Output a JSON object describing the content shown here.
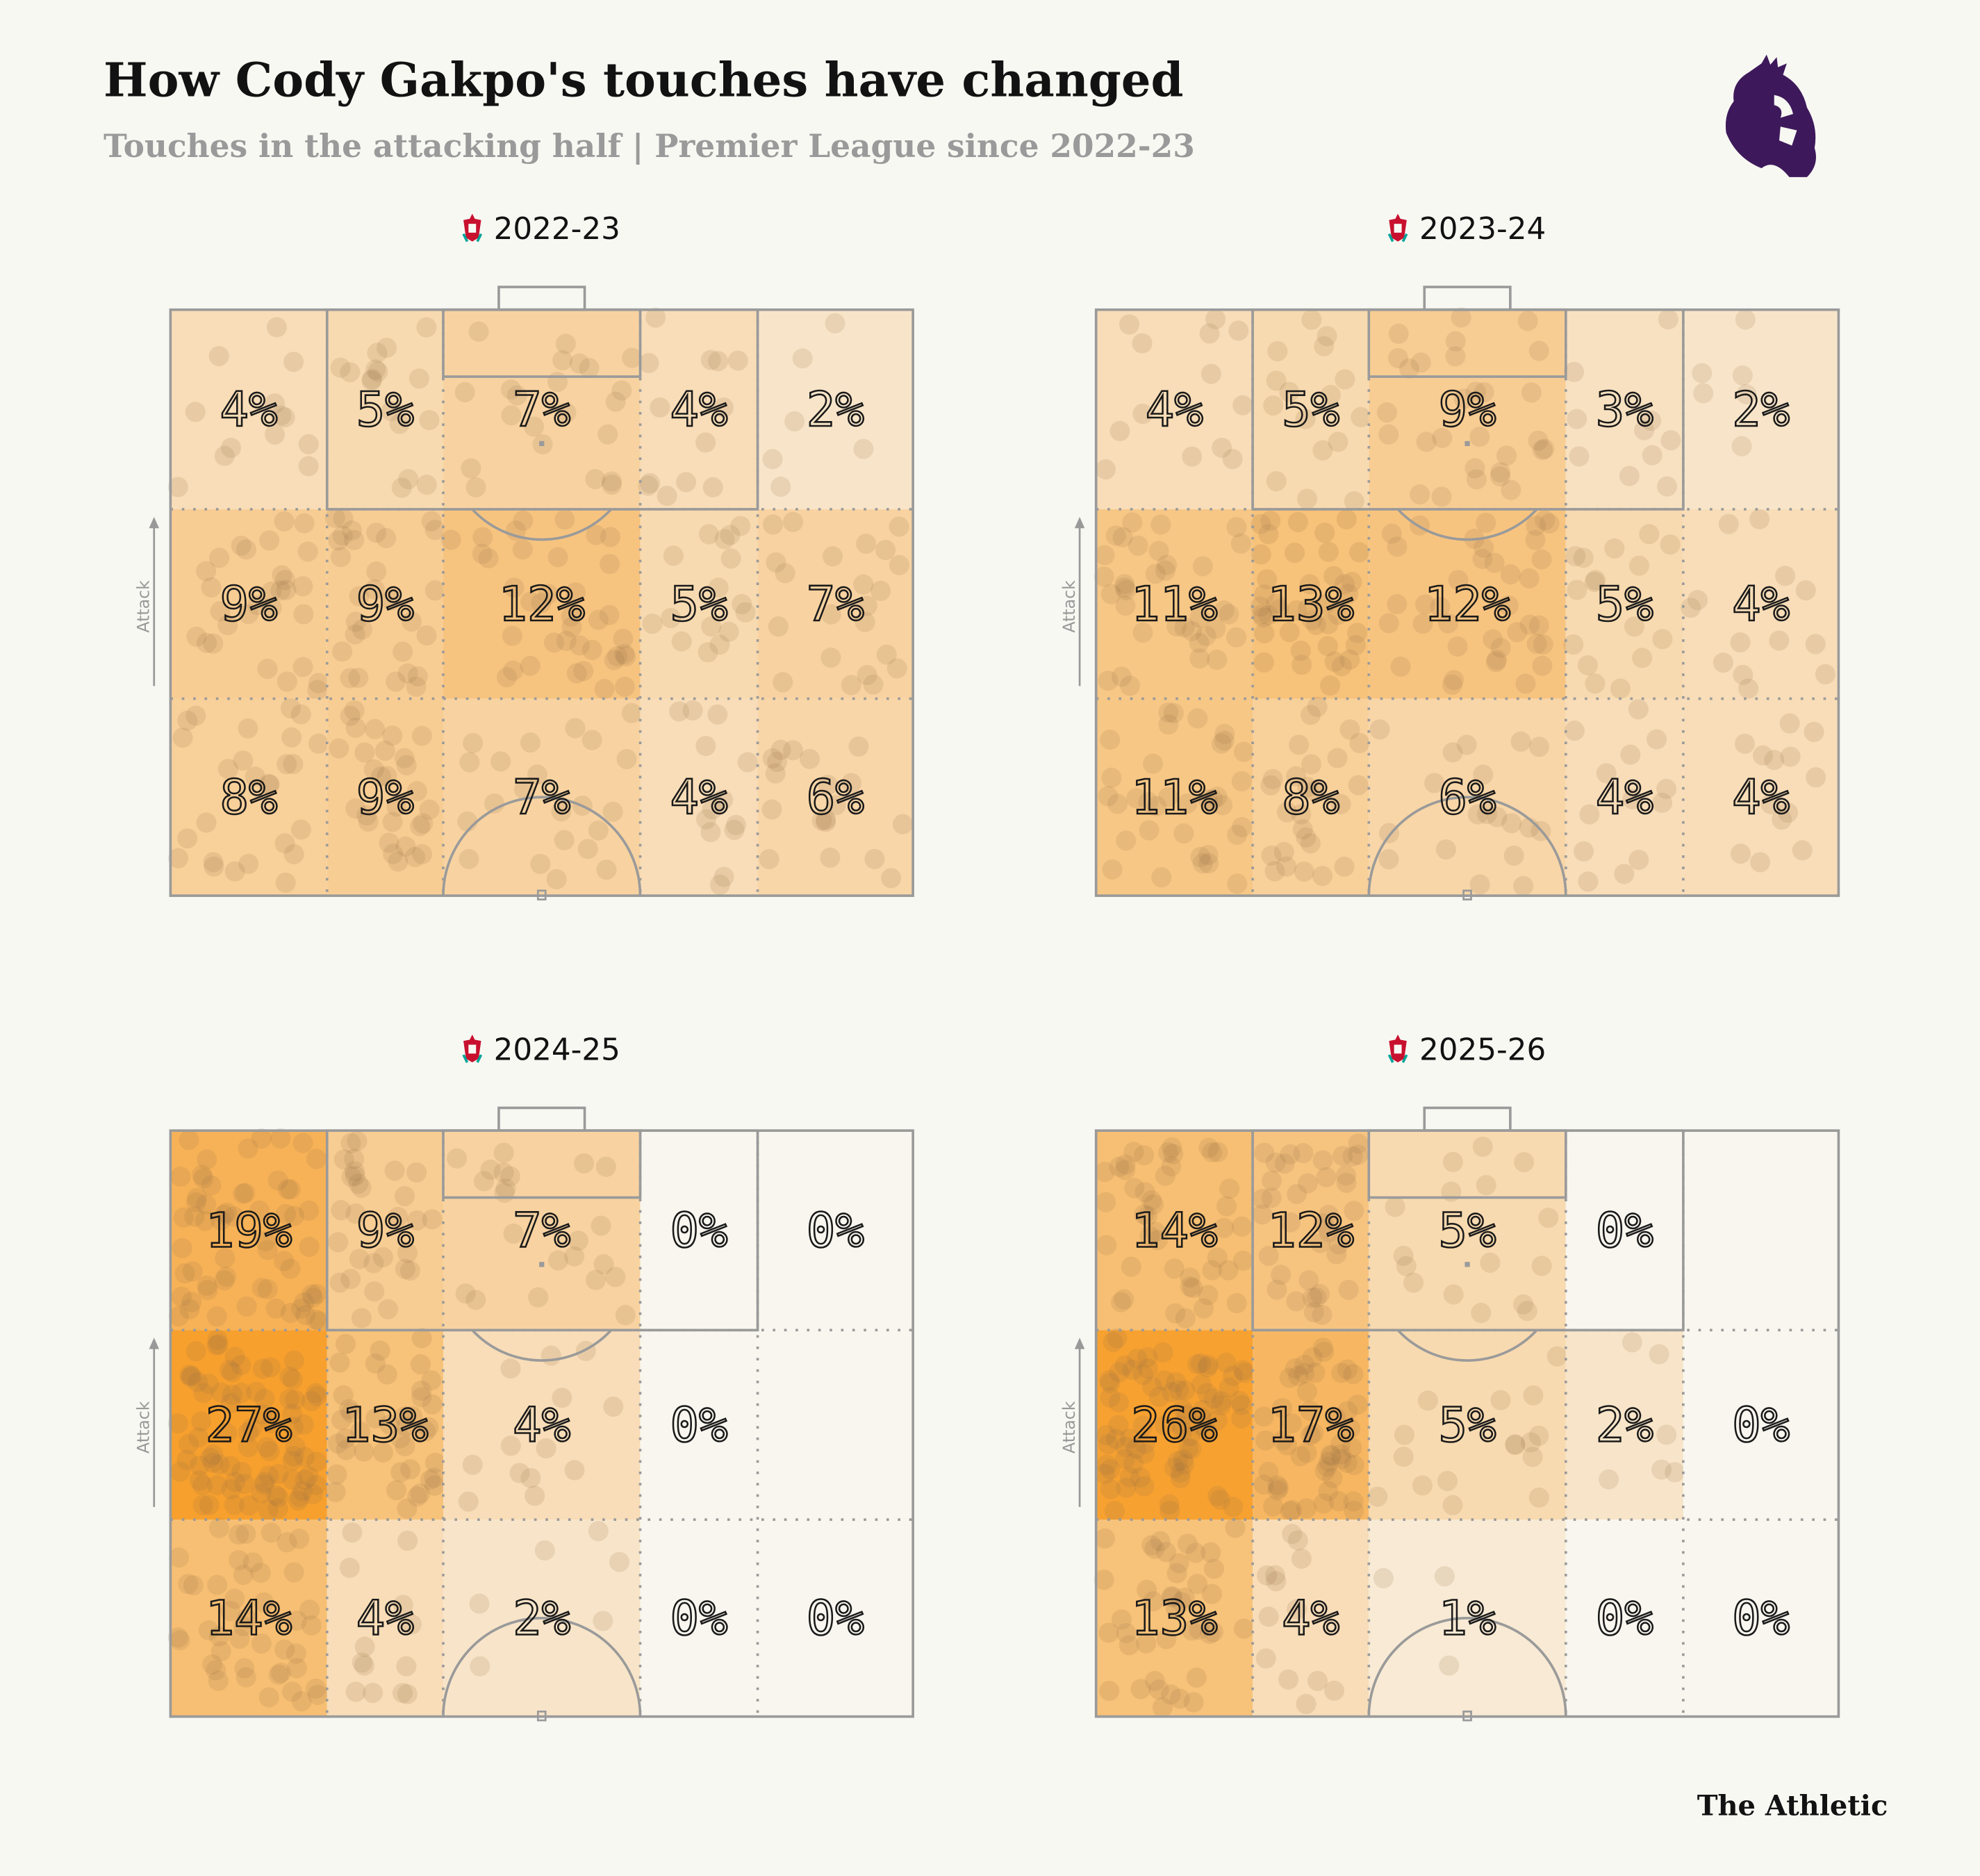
{
  "title": "How Cody Gakpo's touches have changed",
  "subtitle": "Touches in the attacking half | Premier League since 2022-23",
  "brand": "The Athletic",
  "logo": "premier-league-lion-logo",
  "direction_label": "Attack",
  "colors": {
    "background": "#f8f8f3",
    "heat_max": "#f7a02e",
    "lines": "#9a9a9a",
    "logo": "#3d195b"
  },
  "chart_data": {
    "type": "heatmap",
    "title": "How Cody Gakpo's touches have changed",
    "grid": "3 rows x 5 columns per pitch, rows listed from goal end downward",
    "unit": "%",
    "panels": [
      {
        "season": "2022-23",
        "team_icon": "liverpool-crest-icon",
        "values": [
          [
            4,
            5,
            7,
            4,
            2
          ],
          [
            9,
            9,
            12,
            5,
            7
          ],
          [
            8,
            9,
            7,
            4,
            6
          ]
        ]
      },
      {
        "season": "2023-24",
        "team_icon": "liverpool-crest-icon",
        "values": [
          [
            4,
            5,
            9,
            3,
            2
          ],
          [
            11,
            13,
            12,
            5,
            4
          ],
          [
            11,
            8,
            6,
            4,
            4
          ]
        ]
      },
      {
        "season": "2024-25",
        "team_icon": "liverpool-crest-icon",
        "values": [
          [
            19,
            9,
            7,
            0,
            0
          ],
          [
            27,
            13,
            4,
            0,
            null
          ],
          [
            14,
            4,
            2,
            0,
            0
          ]
        ]
      },
      {
        "season": "2025-26",
        "team_icon": "liverpool-crest-icon",
        "values": [
          [
            14,
            12,
            5,
            0,
            null
          ],
          [
            26,
            17,
            5,
            2,
            0
          ],
          [
            13,
            4,
            1,
            0,
            0
          ]
        ]
      }
    ]
  }
}
